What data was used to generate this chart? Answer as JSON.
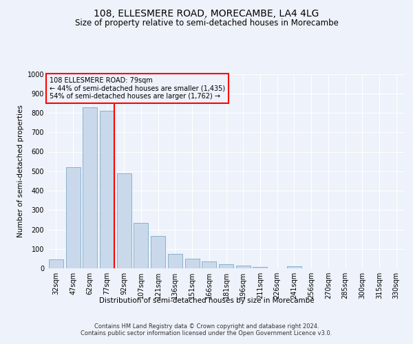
{
  "title": "108, ELLESMERE ROAD, MORECAMBE, LA4 4LG",
  "subtitle": "Size of property relative to semi-detached houses in Morecambe",
  "xlabel": "Distribution of semi-detached houses by size in Morecambe",
  "ylabel": "Number of semi-detached properties",
  "categories": [
    "32sqm",
    "47sqm",
    "62sqm",
    "77sqm",
    "92sqm",
    "107sqm",
    "121sqm",
    "136sqm",
    "151sqm",
    "166sqm",
    "181sqm",
    "196sqm",
    "211sqm",
    "226sqm",
    "241sqm",
    "256sqm",
    "270sqm",
    "285sqm",
    "300sqm",
    "315sqm",
    "330sqm"
  ],
  "values": [
    45,
    520,
    830,
    810,
    490,
    235,
    165,
    75,
    48,
    35,
    20,
    15,
    8,
    0,
    12,
    0,
    0,
    0,
    0,
    0,
    0
  ],
  "bar_color": "#c9d9eb",
  "bar_edge_color": "#7aaac8",
  "vline_color": "red",
  "annotation_box_text": "108 ELLESMERE ROAD: 79sqm\n← 44% of semi-detached houses are smaller (1,435)\n54% of semi-detached houses are larger (1,762) →",
  "annotation_box_color": "red",
  "ylim": [
    0,
    1000
  ],
  "yticks": [
    0,
    100,
    200,
    300,
    400,
    500,
    600,
    700,
    800,
    900,
    1000
  ],
  "footer_text": "Contains HM Land Registry data © Crown copyright and database right 2024.\nContains public sector information licensed under the Open Government Licence v3.0.",
  "bg_color": "#eef2fa",
  "grid_color": "white",
  "title_fontsize": 10,
  "subtitle_fontsize": 8.5,
  "ylabel_fontsize": 7.5,
  "tick_fontsize": 7,
  "annot_fontsize": 7,
  "footer_fontsize": 6
}
